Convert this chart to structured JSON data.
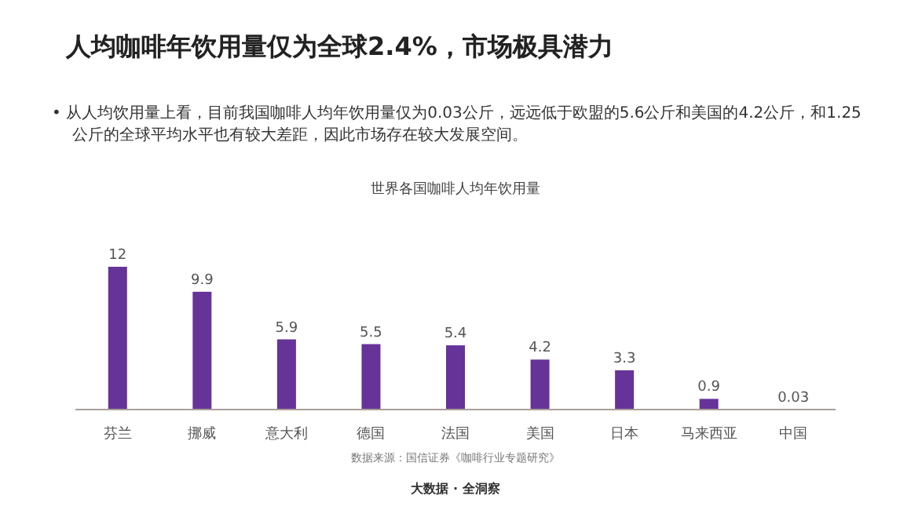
{
  "chart_data": {
    "type": "bar",
    "title": "人均咖啡年饮用量仅为全球2.4%，市场极具潜力",
    "subtitle": "•  从人均饮用量上看，目前我国咖啡人均年饮用量仅为0.03公斤，远远低于欧盟的5.6公斤和美国的4.2公斤，和1.25公斤的全球平均水平也有较大差距，因此市场存在较大发展空间。",
    "xlabel": "世界各国咖啡人均年饮用量",
    "categories": [
      "芬兰",
      "挪威",
      "意大利",
      "德国",
      "法国",
      "美国",
      "日本",
      "马来西亚",
      "中国"
    ],
    "values": [
      12,
      9.9,
      5.9,
      5.5,
      5.4,
      4.2,
      3.3,
      0.9,
      0.03
    ],
    "color": "#663399",
    "data_labels": true,
    "grid": false,
    "legend": false,
    "annotations": [
      "数据来源：国信证券《咖啡行业专题研究》",
      "大数据 · 全洞察"
    ]
  }
}
